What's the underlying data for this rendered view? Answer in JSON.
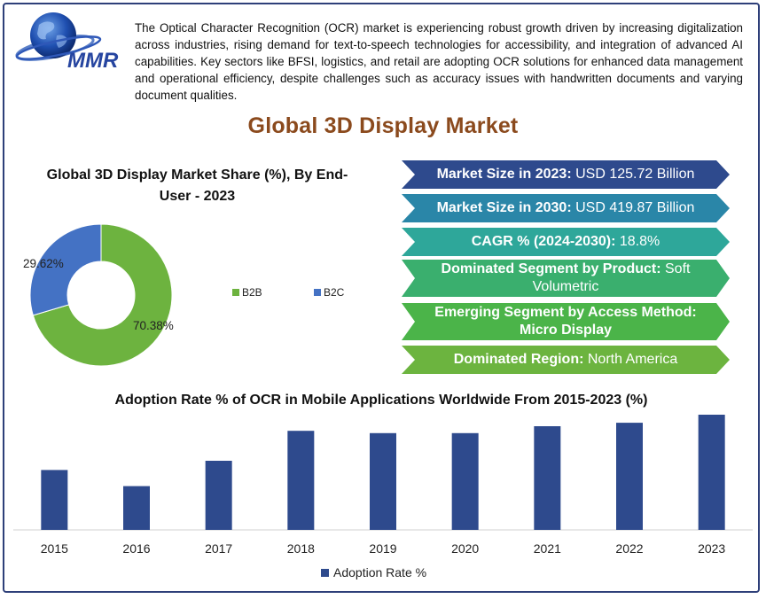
{
  "logo": {
    "text": "MMR"
  },
  "intro_text": "The Optical Character Recognition (OCR) market is experiencing robust growth driven by increasing digitalization across industries, rising demand for text-to-speech technologies for accessibility, and integration of advanced AI capabilities. Key sectors like BFSI, logistics, and retail are adopting OCR solutions for enhanced data management and operational efficiency, despite challenges such as accuracy issues with handwritten documents and varying document qualities.",
  "main_title": "Global 3D Display Market",
  "facts": [
    {
      "label": "Market Size in 2023:",
      "value": " USD 125.72 Billion",
      "color": "#2e4a8d"
    },
    {
      "label": "Market Size in 2030:",
      "value": " USD 419.87 Billion",
      "color": "#2a86a8"
    },
    {
      "label": "CAGR % (2024-2030):",
      "value": " 18.8%",
      "color": "#2ea79a"
    },
    {
      "label": "Dominated Segment by Product:",
      "value": " Soft Volumetric",
      "color": "#3aaf6e"
    },
    {
      "label": "Emerging Segment by Access Method:",
      "value": "Micro Display",
      "color": "#4bb449"
    },
    {
      "label": "Dominated Region:",
      "value": " North America",
      "color": "#6cb43f"
    }
  ],
  "chart_data": [
    {
      "type": "pie",
      "title": "Global 3D Display Market Share (%), By End-User - 2023",
      "categories": [
        "B2B",
        "B2C"
      ],
      "values": [
        70.38,
        29.62
      ],
      "data_labels": [
        "70.38%",
        "29.62%"
      ],
      "colors": [
        "#6db33f",
        "#4472c4"
      ],
      "legend": "right"
    },
    {
      "type": "bar",
      "title": "Adoption Rate % of OCR in Mobile Applications Worldwide From 2015-2023 (%)",
      "categories": [
        "2015",
        "2016",
        "2017",
        "2018",
        "2019",
        "2020",
        "2021",
        "2022",
        "2023"
      ],
      "series": [
        {
          "name": "Adoption Rate %",
          "values": [
            52,
            38,
            60,
            86,
            84,
            84,
            90,
            93,
            100
          ],
          "color": "#2e4a8d"
        }
      ],
      "xlabel": "",
      "ylabel": "",
      "ylim": [
        0,
        100
      ],
      "legend": "bottom"
    }
  ]
}
